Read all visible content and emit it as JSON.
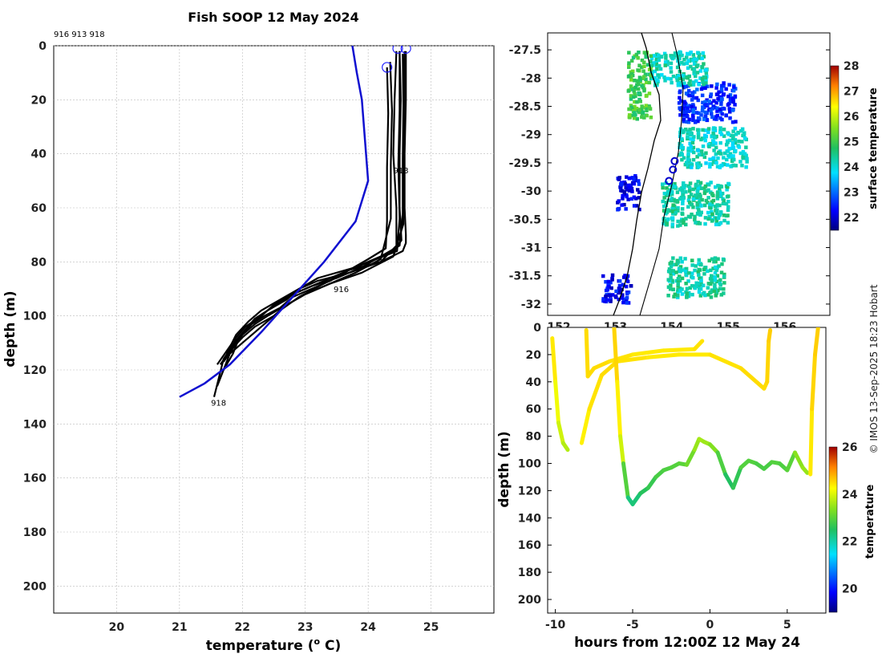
{
  "title": "Fish SOOP 12 May 2024",
  "profile_ids_label": "916 913 918",
  "credit": "© IMOS 13-Sep-2025 18:23 Hobart",
  "colors": {
    "profile_line": "#000000",
    "climatology_line": "#1010d0",
    "marker": "#2222ff",
    "grid": "#bbbbbb"
  },
  "chart_data": [
    {
      "id": "profiles",
      "type": "line",
      "title": "Fish SOOP 12 May 2024",
      "xlabel": "temperature (",
      "xlabel_unit_sup": "o",
      "xlabel_suffix": " C)",
      "ylabel": "depth (m)",
      "xlim": [
        19,
        26
      ],
      "ylim": [
        0,
        210
      ],
      "y_reversed": true,
      "xticks": [
        20,
        21,
        22,
        23,
        24,
        25
      ],
      "yticks": [
        0,
        20,
        40,
        60,
        80,
        100,
        120,
        140,
        160,
        180,
        200
      ],
      "grid": true,
      "profile_labels": [
        {
          "text": "913",
          "x": 24.4,
          "y": 46
        },
        {
          "text": "916",
          "x": 23.45,
          "y": 90
        },
        {
          "text": "918",
          "x": 21.5,
          "y": 132
        }
      ],
      "climatology": {
        "x": [
          23.75,
          23.82,
          23.9,
          23.95,
          24.0,
          23.8,
          23.3,
          22.8,
          22.3,
          21.8,
          21.4,
          21.0
        ],
        "y": [
          0,
          10,
          20,
          35,
          50,
          65,
          80,
          93,
          106,
          118,
          125,
          130
        ]
      },
      "surface_markers": [
        {
          "x": 24.3,
          "y": 8
        },
        {
          "x": 24.47,
          "y": 1
        },
        {
          "x": 24.6,
          "y": 1
        }
      ],
      "series": [
        {
          "name": "p1",
          "x": [
            24.6,
            24.6,
            24.58,
            24.58,
            24.6,
            24.6,
            24.55,
            24.2,
            23.7,
            23.3,
            22.9,
            22.6,
            22.4,
            22.2,
            22.0,
            21.8,
            21.7,
            21.6
          ],
          "y": [
            2,
            20,
            40,
            60,
            70,
            73,
            76,
            80,
            83,
            88,
            93,
            98,
            102,
            106,
            110,
            114,
            120,
            126
          ]
        },
        {
          "name": "p2",
          "x": [
            24.5,
            24.52,
            24.5,
            24.5,
            24.53,
            24.4,
            24.0,
            23.6,
            23.2,
            22.8,
            22.5,
            22.3,
            22.1,
            21.95,
            21.85,
            21.7
          ],
          "y": [
            2,
            20,
            40,
            60,
            72,
            76,
            80,
            84,
            88,
            92,
            96,
            100,
            104,
            108,
            114,
            120
          ]
        },
        {
          "name": "p3",
          "x": [
            24.55,
            24.56,
            24.55,
            24.55,
            24.5,
            24.2,
            23.9,
            23.5,
            23.1,
            22.8,
            22.5,
            22.3,
            22.05,
            21.9,
            21.75,
            21.6
          ],
          "y": [
            3,
            22,
            42,
            62,
            74,
            78,
            82,
            86,
            89,
            92,
            96,
            100,
            104,
            108,
            113,
            118
          ]
        },
        {
          "name": "p4",
          "x": [
            24.3,
            24.32,
            24.3,
            24.3,
            24.28,
            24.0,
            23.7,
            23.4,
            23.1,
            22.8,
            22.6,
            22.35,
            22.15,
            22.0,
            21.85,
            21.7
          ],
          "y": [
            8,
            25,
            45,
            65,
            75,
            79,
            83,
            87,
            90,
            93,
            97,
            100,
            103,
            107,
            112,
            117
          ]
        },
        {
          "name": "p5",
          "x": [
            24.45,
            24.42,
            24.4,
            24.45,
            24.45,
            24.2,
            23.7,
            23.2,
            22.9,
            22.7,
            22.4,
            22.2,
            22.05,
            21.9,
            21.7,
            21.55
          ],
          "y": [
            2,
            20,
            40,
            60,
            74,
            80,
            84,
            87,
            90,
            94,
            98,
            101,
            105,
            109,
            116,
            130
          ]
        },
        {
          "name": "p6",
          "x": [
            24.5,
            24.5,
            24.48,
            24.5,
            24.46,
            23.8,
            23.2,
            22.9,
            22.6,
            22.3,
            22.1,
            21.9,
            21.75
          ],
          "y": [
            2,
            24,
            44,
            64,
            76,
            82,
            86,
            90,
            94,
            98,
            102,
            107,
            114
          ]
        },
        {
          "name": "p7",
          "x": [
            24.58,
            24.58,
            24.56,
            24.56,
            24.4,
            23.9,
            23.4,
            23.0,
            22.7,
            22.5,
            22.2,
            22.0,
            21.8,
            21.65
          ],
          "y": [
            2,
            26,
            46,
            66,
            78,
            84,
            88,
            92,
            96,
            100,
            104,
            108,
            113,
            118
          ]
        },
        {
          "name": "p8",
          "x": [
            24.35,
            24.38,
            24.36,
            24.36,
            24.2,
            23.8,
            23.4,
            23.0,
            22.7,
            22.4,
            22.2,
            21.95,
            21.8
          ],
          "y": [
            6,
            24,
            44,
            64,
            79,
            84,
            88,
            92,
            96,
            100,
            103,
            108,
            113
          ]
        }
      ]
    },
    {
      "id": "sst_map",
      "type": "heatmap",
      "colorbar_label": "surface temperature",
      "colorbar_range": [
        21.5,
        28
      ],
      "colorbar_ticks": [
        22,
        23,
        24,
        25,
        26,
        27,
        28
      ],
      "ylim": [
        -32.2,
        -27.2
      ],
      "xlim": [
        151.8,
        156.8
      ],
      "yticks": [
        -27.5,
        -28,
        -28.5,
        -29,
        -29.5,
        -30,
        -30.5,
        -31,
        -31.5,
        -32
      ],
      "ytick_labels": [
        "-27.5",
        "-28",
        "-28.5",
        "-29",
        "-29.5",
        "-30",
        "-30.5",
        "-31",
        "-31.5",
        "-32"
      ],
      "xticks": [
        152,
        153,
        154,
        155,
        156
      ],
      "xtick_labels": [
        "152",
        "153",
        "154",
        "155",
        "156"
      ],
      "profile_positions": [
        {
          "lon": 154.05,
          "lat": -29.47
        },
        {
          "lon": 154.02,
          "lat": -29.62
        },
        {
          "lon": 153.95,
          "lat": -29.82
        }
      ],
      "sst_patches": [
        {
          "lon": 154.6,
          "lat": -28.4,
          "w": 1.0,
          "h": 0.7,
          "value": 22.6
        },
        {
          "lon": 154.1,
          "lat": -27.8,
          "w": 1.0,
          "h": 0.6,
          "value": 24.2
        },
        {
          "lon": 153.4,
          "lat": -28.1,
          "w": 0.4,
          "h": 1.2,
          "value": 25.0
        },
        {
          "lon": 154.7,
          "lat": -29.2,
          "w": 1.2,
          "h": 0.7,
          "value": 24.1
        },
        {
          "lon": 154.4,
          "lat": -30.2,
          "w": 1.2,
          "h": 0.8,
          "value": 24.3
        },
        {
          "lon": 153.2,
          "lat": -30.0,
          "w": 0.4,
          "h": 0.6,
          "value": 22.2
        },
        {
          "lon": 154.4,
          "lat": -31.5,
          "w": 1.0,
          "h": 0.7,
          "value": 24.3
        },
        {
          "lon": 153.0,
          "lat": -31.7,
          "w": 0.5,
          "h": 0.5,
          "value": 22.3
        }
      ]
    },
    {
      "id": "section",
      "type": "line",
      "xlabel": "hours from 12:00Z 12 May 24",
      "ylabel": "depth (m)",
      "colorbar_label": "temperature",
      "colorbar_range": [
        19,
        26
      ],
      "colorbar_ticks": [
        20,
        22,
        24,
        26
      ],
      "xlim": [
        -10.5,
        7.5
      ],
      "ylim": [
        0,
        210
      ],
      "y_reversed": true,
      "xticks": [
        -10,
        -5,
        0,
        5
      ],
      "yticks": [
        0,
        20,
        40,
        60,
        80,
        100,
        120,
        140,
        160,
        180,
        200
      ],
      "series": [
        {
          "name": "cast_a",
          "x": [
            -10.2,
            -10.0,
            -9.8,
            -9.5,
            -9.2
          ],
          "y": [
            8,
            40,
            70,
            85,
            90
          ],
          "t": [
            24.5,
            24.3,
            24.0,
            23.8,
            23.6
          ]
        },
        {
          "name": "cast_b",
          "x": [
            -8.0,
            -7.9,
            -7.5,
            -6.5,
            -5.0,
            -3.0,
            -1.0,
            -0.5
          ],
          "y": [
            2,
            36,
            30,
            25,
            20,
            17,
            16,
            10
          ],
          "t": [
            24.5,
            24.5,
            24.5,
            24.5,
            24.4,
            24.4,
            24.4,
            24.5
          ]
        },
        {
          "name": "cast_c",
          "x": [
            -8.3,
            -7.8,
            -7.0,
            -6.0,
            -4.0,
            -2.0,
            0.0,
            2.0,
            3.5,
            3.7,
            3.8,
            3.9
          ],
          "y": [
            85,
            60,
            35,
            25,
            22,
            20,
            20,
            30,
            45,
            40,
            10,
            2
          ],
          "t": [
            24.3,
            24.4,
            24.5,
            24.5,
            24.4,
            24.4,
            24.4,
            24.5,
            24.5,
            24.5,
            24.6,
            24.6
          ]
        },
        {
          "name": "cast_d",
          "x": [
            -6.2,
            -6.0,
            -5.8,
            -5.6
          ],
          "y": [
            0,
            40,
            80,
            100
          ],
          "t": [
            24.6,
            24.5,
            24.2,
            23.6
          ]
        },
        {
          "name": "cast_e",
          "x": [
            -5.6,
            -5.3,
            -5.0,
            -4.5,
            -4.0,
            -3.5,
            -3.0,
            -2.5,
            -2.0,
            -1.5,
            -1.0,
            -0.7,
            -0.4,
            0.0,
            0.5,
            1.0,
            1.5,
            2.0,
            2.5,
            3.0,
            3.5,
            4.0,
            4.5,
            5.0,
            5.5,
            6.0,
            6.3
          ],
          "y": [
            100,
            125,
            130,
            122,
            118,
            110,
            105,
            103,
            100,
            101,
            90,
            82,
            84,
            86,
            92,
            108,
            118,
            103,
            98,
            100,
            104,
            99,
            100,
            105,
            92,
            103,
            107
          ],
          "t": [
            23.5,
            22.4,
            22.2,
            22.5,
            22.6,
            22.8,
            22.9,
            22.9,
            23.0,
            23.0,
            23.4,
            23.6,
            23.6,
            23.5,
            23.2,
            22.6,
            22.4,
            22.9,
            23.0,
            22.9,
            22.8,
            22.9,
            23.0,
            22.8,
            23.2,
            23.6,
            23.4
          ]
        },
        {
          "name": "cast_f",
          "x": [
            6.5,
            6.6,
            6.8,
            7.0
          ],
          "y": [
            108,
            60,
            20,
            0
          ],
          "t": [
            24.3,
            24.5,
            24.6,
            24.6
          ]
        }
      ]
    }
  ]
}
